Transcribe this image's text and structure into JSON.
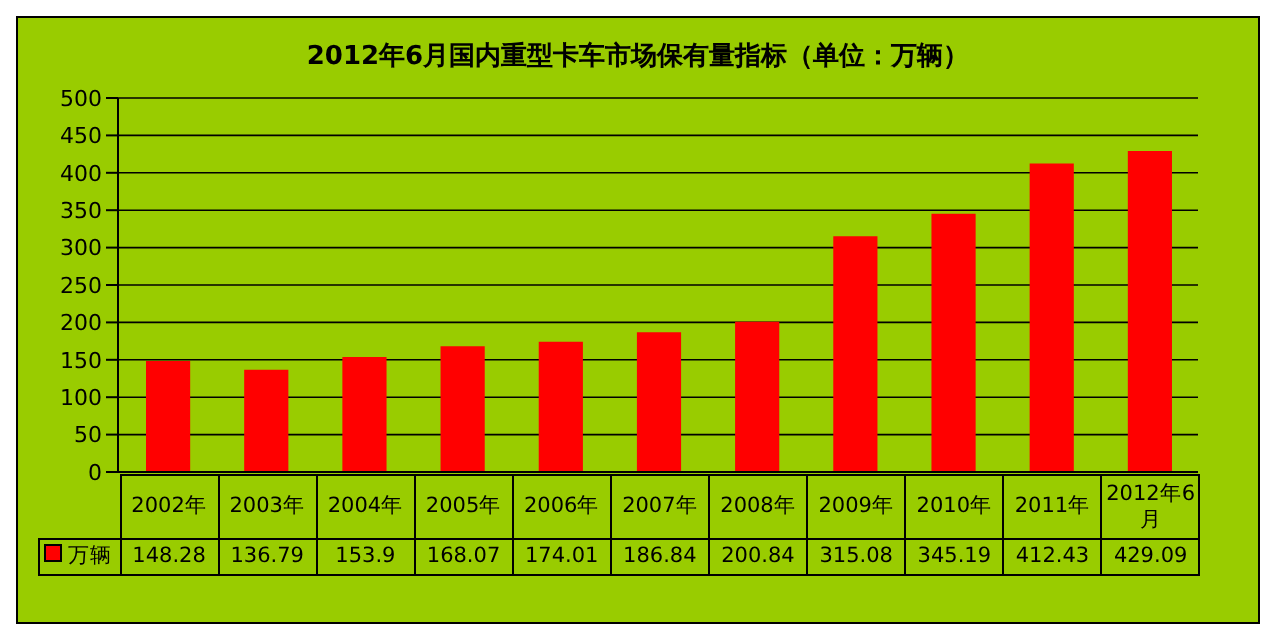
{
  "chart_data": {
    "type": "bar",
    "title": "2012年6月国内重型卡车市场保有量指标（单位：万辆）",
    "categories": [
      "2002年",
      "2003年",
      "2004年",
      "2005年",
      "2006年",
      "2007年",
      "2008年",
      "2009年",
      "2010年",
      "2011年",
      "2012年6月"
    ],
    "series": [
      {
        "name": "万辆",
        "color": "#ff0000",
        "values": [
          148.28,
          136.79,
          153.9,
          168.07,
          174.01,
          186.84,
          200.84,
          315.08,
          345.19,
          412.43,
          429.09
        ]
      }
    ],
    "ylim": [
      0,
      500
    ],
    "yticks": [
      0,
      50,
      100,
      150,
      200,
      250,
      300,
      350,
      400,
      450,
      500
    ],
    "grid": "y",
    "legend": "bottom",
    "data_labels": true
  }
}
